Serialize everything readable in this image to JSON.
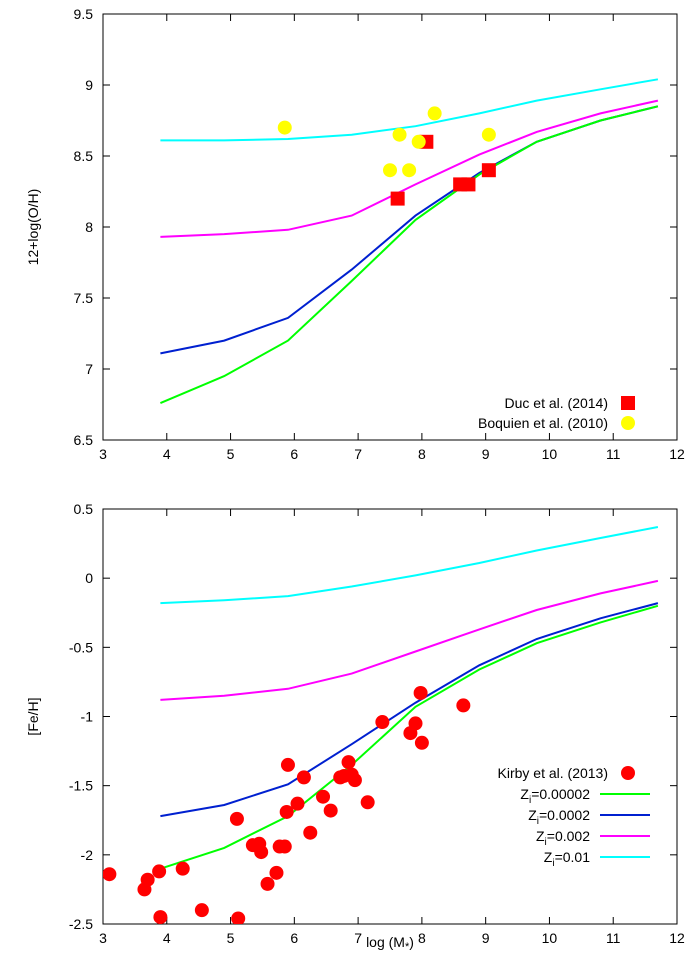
{
  "chart_data": [
    {
      "type": "line",
      "ylabel": "12+log(O/H)",
      "xlabel": "",
      "xlim": [
        3,
        12
      ],
      "ylim": [
        6.5,
        9.5
      ],
      "xticks": [
        "3",
        "4",
        "5",
        "6",
        "7",
        "8",
        "9",
        "10",
        "11",
        "12"
      ],
      "yticks": [
        "6.5",
        "7",
        "7.5",
        "8",
        "8.5",
        "9",
        "9.5"
      ],
      "legend": "bottom-right",
      "series": [
        {
          "name": "",
          "color": "#00ff00",
          "points": [
            [
              3.9,
              6.76
            ],
            [
              4.9,
              6.95
            ],
            [
              5.9,
              7.2
            ],
            [
              6.9,
              7.62
            ],
            [
              7.9,
              8.05
            ],
            [
              8.9,
              8.37
            ],
            [
              9.8,
              8.6
            ],
            [
              10.8,
              8.75
            ],
            [
              11.7,
              8.85
            ]
          ]
        },
        {
          "name": "",
          "color": "#0020d0",
          "points": [
            [
              3.9,
              7.11
            ],
            [
              4.9,
              7.2
            ],
            [
              5.9,
              7.36
            ],
            [
              6.9,
              7.7
            ],
            [
              7.9,
              8.08
            ],
            [
              8.9,
              8.38
            ],
            [
              9.8,
              8.6
            ],
            [
              10.8,
              8.75
            ],
            [
              11.7,
              8.85
            ]
          ]
        },
        {
          "name": "",
          "color": "#ff00ff",
          "points": [
            [
              3.9,
              7.93
            ],
            [
              4.9,
              7.95
            ],
            [
              5.9,
              7.98
            ],
            [
              6.9,
              8.08
            ],
            [
              7.9,
              8.3
            ],
            [
              8.9,
              8.51
            ],
            [
              9.8,
              8.67
            ],
            [
              10.8,
              8.8
            ],
            [
              11.7,
              8.89
            ]
          ]
        },
        {
          "name": "",
          "color": "#00ffff",
          "points": [
            [
              3.9,
              8.61
            ],
            [
              4.9,
              8.61
            ],
            [
              5.9,
              8.62
            ],
            [
              6.9,
              8.65
            ],
            [
              7.9,
              8.71
            ],
            [
              8.9,
              8.8
            ],
            [
              9.8,
              8.89
            ],
            [
              10.8,
              8.97
            ],
            [
              11.7,
              9.04
            ]
          ]
        }
      ],
      "scatter": [
        {
          "name": "Duc et al. (2014)",
          "marker": "square",
          "color": "#ff0000",
          "points": [
            [
              7.62,
              8.2
            ],
            [
              8.07,
              8.6
            ],
            [
              8.6,
              8.3
            ],
            [
              8.73,
              8.3
            ],
            [
              9.05,
              8.4
            ]
          ]
        },
        {
          "name": "Boquien et al. (2010)",
          "marker": "circle",
          "color": "#ffff00",
          "points": [
            [
              5.85,
              8.7
            ],
            [
              7.5,
              8.4
            ],
            [
              7.65,
              8.65
            ],
            [
              7.8,
              8.4
            ],
            [
              7.95,
              8.6
            ],
            [
              8.2,
              8.8
            ],
            [
              9.05,
              8.65
            ]
          ]
        }
      ]
    },
    {
      "type": "line",
      "ylabel": "[Fe/H]",
      "xlabel": "log (M*)",
      "xlim": [
        3,
        12
      ],
      "ylim": [
        -2.5,
        0.5
      ],
      "xticks": [
        "3",
        "4",
        "5",
        "6",
        "7",
        "8",
        "9",
        "10",
        "11",
        "12"
      ],
      "yticks": [
        "-2.5",
        "-2",
        "-1.5",
        "-1",
        "-0.5",
        "0",
        "0.5"
      ],
      "legend": "bottom-right",
      "series": [
        {
          "name": "Zi=0.00002",
          "label_main": "Z",
          "label_sub": "i",
          "label_rest": "=0.00002",
          "color": "#00ff00",
          "points": [
            [
              3.9,
              -2.1
            ],
            [
              4.9,
              -1.95
            ],
            [
              5.9,
              -1.72
            ],
            [
              6.9,
              -1.35
            ],
            [
              7.9,
              -0.93
            ],
            [
              8.9,
              -0.66
            ],
            [
              9.8,
              -0.47
            ],
            [
              10.8,
              -0.32
            ],
            [
              11.7,
              -0.2
            ]
          ]
        },
        {
          "name": "Zi=0.0002",
          "label_main": "Z",
          "label_sub": "i",
          "label_rest": "=0.0002",
          "color": "#0020d0",
          "points": [
            [
              3.9,
              -1.72
            ],
            [
              4.9,
              -1.64
            ],
            [
              5.9,
              -1.49
            ],
            [
              6.9,
              -1.2
            ],
            [
              7.9,
              -0.9
            ],
            [
              8.9,
              -0.63
            ],
            [
              9.8,
              -0.44
            ],
            [
              10.8,
              -0.29
            ],
            [
              11.7,
              -0.18
            ]
          ]
        },
        {
          "name": "Zi=0.002",
          "label_main": "Z",
          "label_sub": "i",
          "label_rest": "=0.002",
          "color": "#ff00ff",
          "points": [
            [
              3.9,
              -0.88
            ],
            [
              4.9,
              -0.85
            ],
            [
              5.9,
              -0.8
            ],
            [
              6.9,
              -0.69
            ],
            [
              7.9,
              -0.53
            ],
            [
              8.9,
              -0.37
            ],
            [
              9.8,
              -0.23
            ],
            [
              10.8,
              -0.11
            ],
            [
              11.7,
              -0.02
            ]
          ]
        },
        {
          "name": "Zi=0.01",
          "label_main": "Z",
          "label_sub": "i",
          "label_rest": "=0.01",
          "color": "#00ffff",
          "points": [
            [
              3.9,
              -0.18
            ],
            [
              4.9,
              -0.16
            ],
            [
              5.9,
              -0.13
            ],
            [
              6.9,
              -0.06
            ],
            [
              7.9,
              0.02
            ],
            [
              8.9,
              0.11
            ],
            [
              9.8,
              0.2
            ],
            [
              10.8,
              0.29
            ],
            [
              11.7,
              0.37
            ]
          ]
        }
      ],
      "scatter": [
        {
          "name": "Kirby et al. (2013)",
          "marker": "circle",
          "color": "#ff0000",
          "points": [
            [
              3.1,
              -2.14
            ],
            [
              3.65,
              -2.25
            ],
            [
              3.7,
              -2.18
            ],
            [
              3.88,
              -2.12
            ],
            [
              3.9,
              -2.45
            ],
            [
              4.25,
              -2.1
            ],
            [
              4.55,
              -2.4
            ],
            [
              5.1,
              -1.74
            ],
            [
              5.12,
              -2.46
            ],
            [
              5.35,
              -1.93
            ],
            [
              5.45,
              -1.92
            ],
            [
              5.48,
              -1.98
            ],
            [
              5.58,
              -2.21
            ],
            [
              5.72,
              -2.13
            ],
            [
              5.77,
              -1.94
            ],
            [
              5.85,
              -1.94
            ],
            [
              5.88,
              -1.69
            ],
            [
              5.9,
              -1.35
            ],
            [
              6.05,
              -1.63
            ],
            [
              6.15,
              -1.44
            ],
            [
              6.25,
              -1.84
            ],
            [
              6.45,
              -1.58
            ],
            [
              6.57,
              -1.68
            ],
            [
              6.72,
              -1.44
            ],
            [
              6.78,
              -1.43
            ],
            [
              6.85,
              -1.33
            ],
            [
              6.9,
              -1.42
            ],
            [
              6.95,
              -1.46
            ],
            [
              7.15,
              -1.62
            ],
            [
              7.38,
              -1.04
            ],
            [
              7.82,
              -1.12
            ],
            [
              7.9,
              -1.05
            ],
            [
              7.98,
              -0.83
            ],
            [
              8.0,
              -1.19
            ],
            [
              8.65,
              -0.92
            ]
          ]
        }
      ]
    }
  ]
}
